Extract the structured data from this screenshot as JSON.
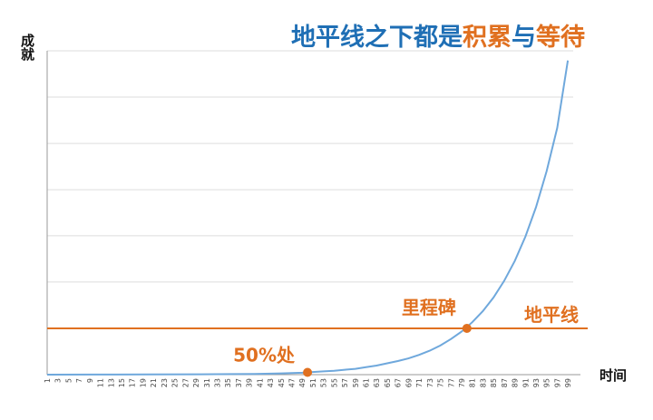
{
  "chart_data": {
    "type": "line",
    "title_parts": [
      {
        "text": "地平线之下都是",
        "color": "#1f6fb5"
      },
      {
        "text": "积累",
        "color": "#e07020"
      },
      {
        "text": "与",
        "color": "#1f6fb5"
      },
      {
        "text": "等待",
        "color": "#e07020"
      }
    ],
    "ylabel": "成就",
    "xlabel": "时间",
    "xlim": [
      1,
      100
    ],
    "ylim": [
      0,
      100
    ],
    "x_ticks": [
      1,
      3,
      5,
      7,
      9,
      11,
      13,
      15,
      17,
      19,
      21,
      23,
      25,
      27,
      29,
      31,
      33,
      35,
      37,
      39,
      41,
      43,
      45,
      47,
      49,
      51,
      53,
      55,
      57,
      59,
      61,
      63,
      65,
      67,
      69,
      71,
      73,
      75,
      77,
      79,
      81,
      83,
      85,
      87,
      89,
      91,
      93,
      95,
      97,
      99
    ],
    "gridlines_y": [
      14.3,
      28.6,
      42.9,
      57.1,
      71.4,
      85.7,
      100
    ],
    "grid": true,
    "series": [
      {
        "color": "#6fa8dc",
        "points": [
          [
            1,
            0.0
          ],
          [
            10,
            0.02
          ],
          [
            20,
            0.05
          ],
          [
            30,
            0.1
          ],
          [
            40,
            0.2
          ],
          [
            43,
            0.3
          ],
          [
            45,
            0.4
          ],
          [
            47,
            0.5
          ],
          [
            49,
            0.6
          ],
          [
            51,
            0.8
          ],
          [
            53,
            1.0
          ],
          [
            55,
            1.2
          ],
          [
            57,
            1.5
          ],
          [
            59,
            1.8
          ],
          [
            61,
            2.3
          ],
          [
            63,
            2.8
          ],
          [
            65,
            3.5
          ],
          [
            67,
            4.2
          ],
          [
            69,
            5.0
          ],
          [
            71,
            6.1
          ],
          [
            73,
            7.4
          ],
          [
            75,
            9.0
          ],
          [
            77,
            11.0
          ],
          [
            79,
            13.3
          ],
          [
            81,
            16.2
          ],
          [
            83,
            19.6
          ],
          [
            85,
            23.8
          ],
          [
            87,
            28.9
          ],
          [
            89,
            35.1
          ],
          [
            91,
            42.6
          ],
          [
            93,
            51.7
          ],
          [
            95,
            62.8
          ],
          [
            97,
            76.2
          ],
          [
            99,
            97.0
          ]
        ]
      }
    ],
    "horizon": {
      "label": "地平线",
      "y": 14.3,
      "color": "#e07020"
    },
    "annotations": [
      {
        "label": "50%处",
        "x": 50,
        "y": 0.7,
        "color": "#e07020"
      },
      {
        "label": "里程碑",
        "x": 80,
        "y": 14.3,
        "color": "#e07020"
      }
    ]
  }
}
